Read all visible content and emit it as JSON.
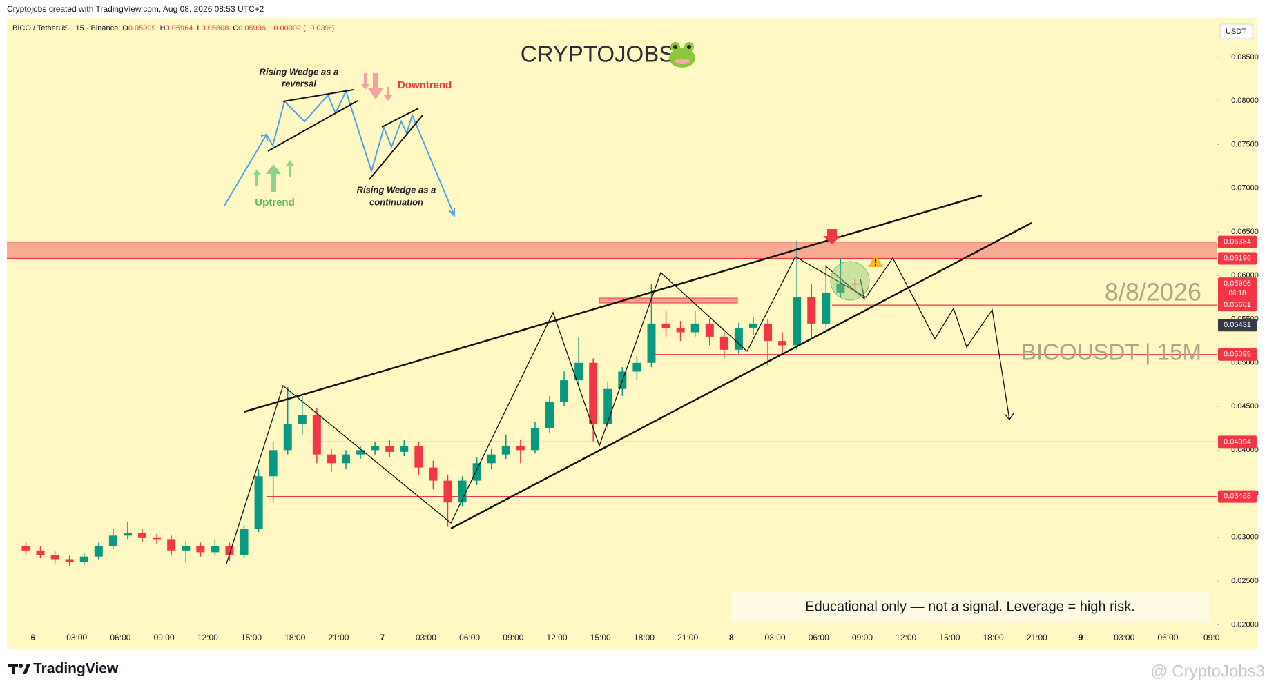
{
  "header": {
    "credit": "Cryptojobs created with TradingView.com, Aug 08, 2026 08:53 UTC+2",
    "symbol": "BICO / TetherUS · 15 · Binance",
    "ohlc": [
      {
        "key": "O",
        "value": 0.05909
      },
      {
        "key": "H",
        "value": 0.05964
      },
      {
        "key": "L",
        "value": 0.05808
      },
      {
        "key": "C",
        "value": 0.05906
      }
    ],
    "change": "−0.00002 (−0.03%)",
    "currency_button": "USDT"
  },
  "chart_data": {
    "type": "candlestick",
    "title": "CRYPTOJOBS",
    "open": [
      0.029,
      0.0285,
      0.028,
      0.0275,
      0.0272,
      0.0278,
      0.029,
      0.0302,
      0.0305,
      0.03,
      0.0298,
      0.0285,
      0.029,
      0.0283,
      0.029,
      0.028,
      0.031,
      0.037,
      0.04,
      0.043,
      0.044,
      0.0395,
      0.0385,
      0.0395,
      0.04,
      0.0405,
      0.0398,
      0.0405,
      0.038,
      0.0365,
      0.034,
      0.0365,
      0.0385,
      0.0395,
      0.0405,
      0.04,
      0.0425,
      0.0455,
      0.048,
      0.05,
      0.043,
      0.047,
      0.049,
      0.05,
      0.0545,
      0.054,
      0.0535,
      0.0545,
      0.053,
      0.0515,
      0.054,
      0.0545,
      0.0525,
      0.052,
      0.0575,
      0.0545,
      0.058,
      0.05909
    ],
    "high": [
      0.0295,
      0.029,
      0.0284,
      0.0279,
      0.0282,
      0.0294,
      0.031,
      0.0318,
      0.031,
      0.0304,
      0.0302,
      0.0296,
      0.0294,
      0.0298,
      0.0294,
      0.0314,
      0.0378,
      0.041,
      0.0472,
      0.0462,
      0.0448,
      0.0402,
      0.04,
      0.0405,
      0.041,
      0.0412,
      0.0412,
      0.041,
      0.0388,
      0.0372,
      0.037,
      0.0392,
      0.0402,
      0.0418,
      0.0412,
      0.0432,
      0.0462,
      0.049,
      0.053,
      0.0505,
      0.0478,
      0.0495,
      0.0508,
      0.059,
      0.056,
      0.0548,
      0.056,
      0.055,
      0.0535,
      0.0546,
      0.0552,
      0.055,
      0.0535,
      0.064,
      0.059,
      0.061,
      0.062,
      0.05964
    ],
    "low": [
      0.028,
      0.0276,
      0.027,
      0.0267,
      0.0268,
      0.0275,
      0.0287,
      0.0298,
      0.0295,
      0.0292,
      0.028,
      0.0272,
      0.0278,
      0.0279,
      0.0273,
      0.0277,
      0.0306,
      0.034,
      0.0395,
      0.0418,
      0.0385,
      0.0375,
      0.0378,
      0.039,
      0.0395,
      0.0392,
      0.0393,
      0.0372,
      0.0355,
      0.0312,
      0.0335,
      0.036,
      0.0378,
      0.039,
      0.0385,
      0.0396,
      0.042,
      0.045,
      0.0475,
      0.041,
      0.0425,
      0.0462,
      0.048,
      0.0495,
      0.053,
      0.0525,
      0.053,
      0.052,
      0.0505,
      0.051,
      0.0532,
      0.0497,
      0.051,
      0.0515,
      0.053,
      0.054,
      0.0575,
      0.05808
    ],
    "close": [
      0.0285,
      0.028,
      0.0275,
      0.0272,
      0.0278,
      0.029,
      0.0302,
      0.0305,
      0.03,
      0.0298,
      0.0285,
      0.029,
      0.0283,
      0.029,
      0.028,
      0.031,
      0.037,
      0.04,
      0.043,
      0.044,
      0.0395,
      0.0385,
      0.0395,
      0.04,
      0.0405,
      0.0398,
      0.0405,
      0.038,
      0.0365,
      0.034,
      0.0365,
      0.0385,
      0.0395,
      0.0405,
      0.04,
      0.0425,
      0.0455,
      0.048,
      0.05,
      0.043,
      0.047,
      0.049,
      0.05,
      0.0545,
      0.054,
      0.0535,
      0.0545,
      0.053,
      0.0515,
      0.054,
      0.0545,
      0.0525,
      0.052,
      0.0575,
      0.0545,
      0.058,
      0.05909,
      0.05906
    ],
    "up_color": "#089981",
    "down_color": "#f23645",
    "ylim": [
      0.0175,
      0.0895
    ],
    "yticks": [
      {
        "value": 0.02,
        "label": "0.02000"
      },
      {
        "value": 0.025,
        "label": "0.02500"
      },
      {
        "value": 0.03,
        "label": "0.03000"
      },
      {
        "value": 0.035,
        "label": "0.03500"
      },
      {
        "value": 0.04,
        "label": "0.04000"
      },
      {
        "value": 0.045,
        "label": "0.04500"
      },
      {
        "value": 0.05,
        "label": "0.05000"
      },
      {
        "value": 0.055,
        "label": "0.05500"
      },
      {
        "value": 0.06,
        "label": "0.06000"
      },
      {
        "value": 0.065,
        "label": "0.06500"
      },
      {
        "value": 0.07,
        "label": "0.07000"
      },
      {
        "value": 0.075,
        "label": "0.07500"
      },
      {
        "value": 0.08,
        "label": "0.08000"
      },
      {
        "value": 0.085,
        "label": "0.08500"
      }
    ],
    "xtick_labels": [
      "6",
      "03:00",
      "06:00",
      "09:00",
      "12:00",
      "15:00",
      "18:00",
      "21:00",
      "7",
      "03:00",
      "06:00",
      "09:00",
      "12:00",
      "15:00",
      "18:00",
      "21:00",
      "8",
      "03:00",
      "06:00",
      "09:00",
      "12:00",
      "15:00",
      "18:00",
      "21:00",
      "9",
      "03:00",
      "06:00",
      "09:0"
    ],
    "price_lines": [
      0.06384,
      0.06196,
      0.05906,
      0.05661,
      0.05431,
      0.05095,
      0.04094,
      0.03468
    ],
    "countdown": "06:18"
  },
  "annotations": {
    "reversal": [
      "Rising Wedge as a",
      "reversal"
    ],
    "downtrend": "Downtrend",
    "uptrend": "Uptrend",
    "continuation": [
      "Rising Wedge as a",
      "continuation"
    ],
    "date": "8/8/2026",
    "pair": "BICOUSDT | 15M",
    "disclaimer": "Educational only — not a signal. Leverage  = high risk."
  },
  "footer": {
    "logo": "TradingView",
    "watermark": "@ CryptoJobs3"
  }
}
